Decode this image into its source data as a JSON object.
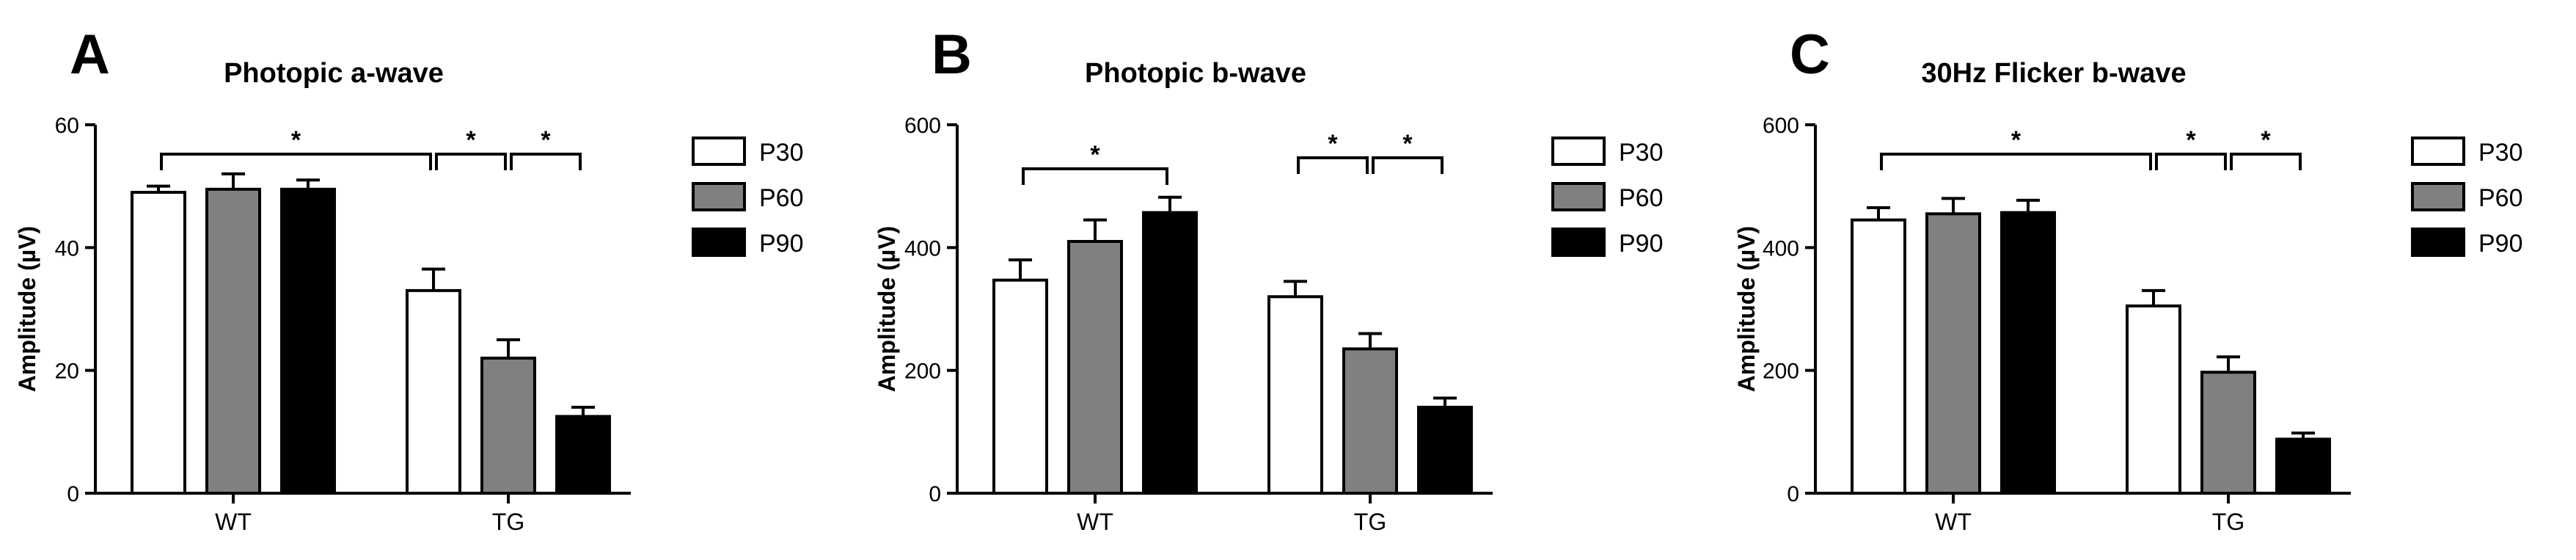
{
  "colors": {
    "P30": "#ffffff",
    "P60": "#808080",
    "P90": "#000000",
    "stroke": "#000000"
  },
  "chart_data": [
    {
      "type": "bar",
      "panel": "A",
      "title": "Photopic a-wave",
      "xlabel": "",
      "ylabel": "Amplitude (µV)",
      "ylim": [
        0,
        60
      ],
      "yticks": [
        "0",
        "20",
        "40",
        "60"
      ],
      "grid": false,
      "legend": "right",
      "categories": [
        "WT",
        "TG"
      ],
      "series": [
        {
          "name": "P30",
          "values": [
            49,
            33
          ],
          "errors": [
            1,
            3.5
          ]
        },
        {
          "name": "P60",
          "values": [
            49.5,
            22
          ],
          "errors": [
            2.5,
            3
          ]
        },
        {
          "name": "P90",
          "values": [
            49.5,
            12.5
          ],
          "errors": [
            1.5,
            1.5
          ]
        }
      ],
      "significance": [
        {
          "from": "WT.P30",
          "to": "TG.P30",
          "label": "*"
        },
        {
          "from": "TG.P30",
          "to": "TG.P60",
          "label": "*"
        },
        {
          "from": "TG.P60",
          "to": "TG.P90",
          "label": "*"
        }
      ]
    },
    {
      "type": "bar",
      "panel": "B",
      "title": "Photopic b-wave",
      "xlabel": "",
      "ylabel": "Amplitude (µV)",
      "ylim": [
        0,
        600
      ],
      "yticks": [
        "0",
        "200",
        "400",
        "600"
      ],
      "grid": false,
      "legend": "right",
      "categories": [
        "WT",
        "TG"
      ],
      "series": [
        {
          "name": "P30",
          "values": [
            347,
            320
          ],
          "errors": [
            33,
            25
          ]
        },
        {
          "name": "P60",
          "values": [
            410,
            235
          ],
          "errors": [
            35,
            25
          ]
        },
        {
          "name": "P90",
          "values": [
            457,
            140
          ],
          "errors": [
            25,
            15
          ]
        }
      ],
      "significance": [
        {
          "from": "WT.P30",
          "to": "WT.P90",
          "label": "*"
        },
        {
          "from": "TG.P30",
          "to": "TG.P60",
          "label": "*"
        },
        {
          "from": "TG.P60",
          "to": "TG.P90",
          "label": "*"
        }
      ]
    },
    {
      "type": "bar",
      "panel": "C",
      "title": "30Hz Flicker b-wave",
      "xlabel": "",
      "ylabel": "Amplitude (µV)",
      "ylim": [
        0,
        600
      ],
      "yticks": [
        "0",
        "200",
        "400",
        "600"
      ],
      "grid": false,
      "legend": "right",
      "categories": [
        "WT",
        "TG"
      ],
      "series": [
        {
          "name": "P30",
          "values": [
            445,
            305
          ],
          "errors": [
            20,
            25
          ]
        },
        {
          "name": "P60",
          "values": [
            455,
            197
          ],
          "errors": [
            25,
            25
          ]
        },
        {
          "name": "P90",
          "values": [
            457,
            88
          ],
          "errors": [
            20,
            10
          ]
        }
      ],
      "significance": [
        {
          "from": "WT.P30",
          "to": "TG.P30",
          "label": "*"
        },
        {
          "from": "TG.P30",
          "to": "TG.P60",
          "label": "*"
        },
        {
          "from": "TG.P60",
          "to": "TG.P90",
          "label": "*"
        }
      ]
    }
  ]
}
